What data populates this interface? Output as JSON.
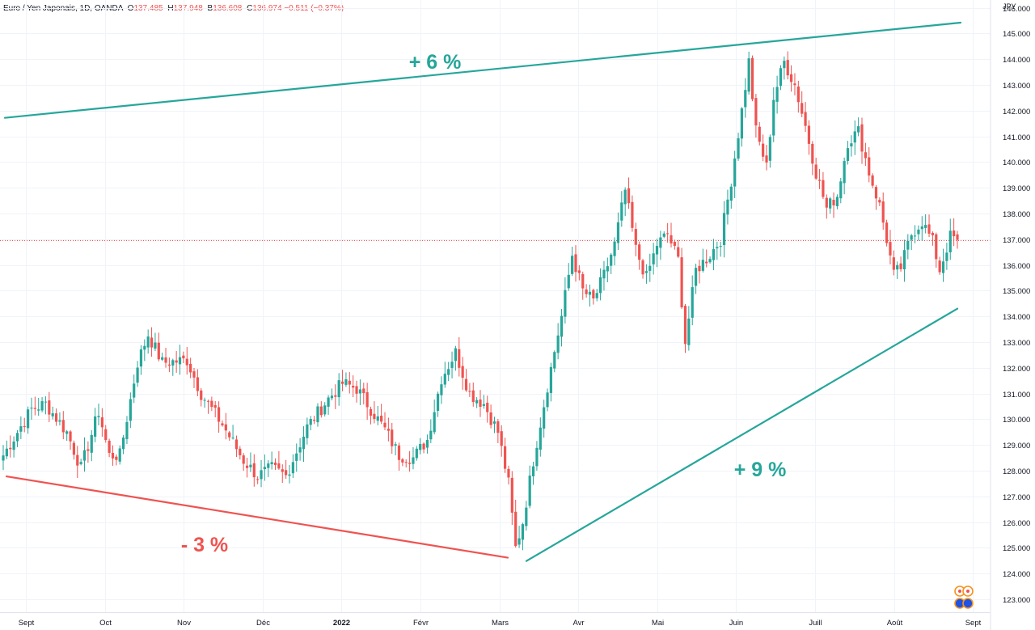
{
  "header": {
    "symbol": "Euro / Yen Japonais, 1D, OANDA",
    "o_label": "O",
    "o_value": "137.485",
    "h_label": "H",
    "h_value": "137.948",
    "b_label": "B",
    "b_value": "136.608",
    "c_label": "C",
    "c_value": "136.974",
    "change": "−0.511 (−0.37%)"
  },
  "axis_unit": "JPY",
  "colors": {
    "up": "#26a69a",
    "down": "#ef5350",
    "grid": "#f0f3fa",
    "text": "#131722",
    "price_line": "#ef5350"
  },
  "chart_data": {
    "type": "candlestick",
    "ylim": [
      122.5,
      146.3
    ],
    "y_ticks": [
      "123.000",
      "124.000",
      "125.000",
      "126.000",
      "127.000",
      "128.000",
      "129.000",
      "130.000",
      "131.000",
      "132.000",
      "133.000",
      "134.000",
      "135.000",
      "136.000",
      "137.000",
      "138.000",
      "139.000",
      "140.000",
      "141.000",
      "142.000",
      "143.000",
      "144.000",
      "145.000",
      "146.000"
    ],
    "x_ticks": [
      "Sept",
      "Oct",
      "Nov",
      "Déc",
      "2022",
      "Févr",
      "Mars",
      "Avr",
      "Mai",
      "Juin",
      "Juill",
      "Août",
      "Sept"
    ],
    "last_close": 136.974,
    "waypoints": [
      [
        0,
        128.6
      ],
      [
        8,
        130.4
      ],
      [
        12,
        130.6
      ],
      [
        18,
        129.5
      ],
      [
        22,
        128.1
      ],
      [
        27,
        130.3
      ],
      [
        30,
        128.6
      ],
      [
        33,
        128.6
      ],
      [
        38,
        132.2
      ],
      [
        41,
        133.3
      ],
      [
        45,
        132.2
      ],
      [
        52,
        132.3
      ],
      [
        56,
        131.0
      ],
      [
        62,
        129.8
      ],
      [
        68,
        128.4
      ],
      [
        72,
        127.8
      ],
      [
        76,
        128.1
      ],
      [
        80,
        127.8
      ],
      [
        86,
        129.7
      ],
      [
        92,
        130.8
      ],
      [
        96,
        131.4
      ],
      [
        100,
        131.2
      ],
      [
        104,
        130.4
      ],
      [
        108,
        129.6
      ],
      [
        112,
        128.6
      ],
      [
        116,
        128.5
      ],
      [
        120,
        129.2
      ],
      [
        124,
        131.6
      ],
      [
        128,
        132.6
      ],
      [
        132,
        131.0
      ],
      [
        136,
        130.6
      ],
      [
        140,
        129.5
      ],
      [
        143,
        127.5
      ],
      [
        145,
        125.0
      ],
      [
        147,
        126.0
      ],
      [
        150,
        128.4
      ],
      [
        154,
        131.3
      ],
      [
        158,
        134.0
      ],
      [
        161,
        136.4
      ],
      [
        164,
        135.0
      ],
      [
        167,
        134.6
      ],
      [
        170,
        135.6
      ],
      [
        173,
        136.8
      ],
      [
        176,
        138.9
      ],
      [
        179,
        136.6
      ],
      [
        182,
        135.5
      ],
      [
        185,
        136.8
      ],
      [
        188,
        137.2
      ],
      [
        191,
        136.2
      ],
      [
        193,
        133.0
      ],
      [
        196,
        135.8
      ],
      [
        200,
        136.4
      ],
      [
        203,
        137.0
      ],
      [
        206,
        139.3
      ],
      [
        209,
        142.0
      ],
      [
        211,
        143.9
      ],
      [
        213,
        141.2
      ],
      [
        216,
        139.8
      ],
      [
        218,
        142.5
      ],
      [
        221,
        143.9
      ],
      [
        224,
        143.0
      ],
      [
        227,
        141.4
      ],
      [
        230,
        139.6
      ],
      [
        233,
        138.2
      ],
      [
        236,
        138.7
      ],
      [
        239,
        140.8
      ],
      [
        242,
        141.2
      ],
      [
        245,
        139.6
      ],
      [
        248,
        138.3
      ],
      [
        250,
        137.0
      ],
      [
        252,
        135.6
      ],
      [
        254,
        135.9
      ],
      [
        257,
        137.2
      ],
      [
        260,
        137.7
      ],
      [
        263,
        136.9
      ],
      [
        265,
        135.8
      ],
      [
        268,
        137.1
      ],
      [
        270,
        137.0
      ]
    ],
    "trendlines": [
      {
        "from": [
          6,
          141.72
        ],
        "to": [
          1188,
          145.42
        ],
        "color": "#26a69a"
      },
      {
        "from": [
          8,
          127.78
        ],
        "to": [
          628,
          124.62
        ],
        "color": "#ef5350"
      },
      {
        "from": [
          651,
          124.49
        ],
        "to": [
          1184,
          134.3
        ],
        "color": "#26a69a"
      }
    ],
    "annotations": [
      {
        "text": "+ 6 %",
        "color": "#26a69a",
        "at": [
          538,
          76
        ]
      },
      {
        "text": "+ 9 %",
        "color": "#26a69a",
        "at": [
          940,
          580
        ]
      },
      {
        "text": "- 3 %",
        "color": "#ef5350",
        "at": [
          253,
          673
        ]
      }
    ]
  }
}
